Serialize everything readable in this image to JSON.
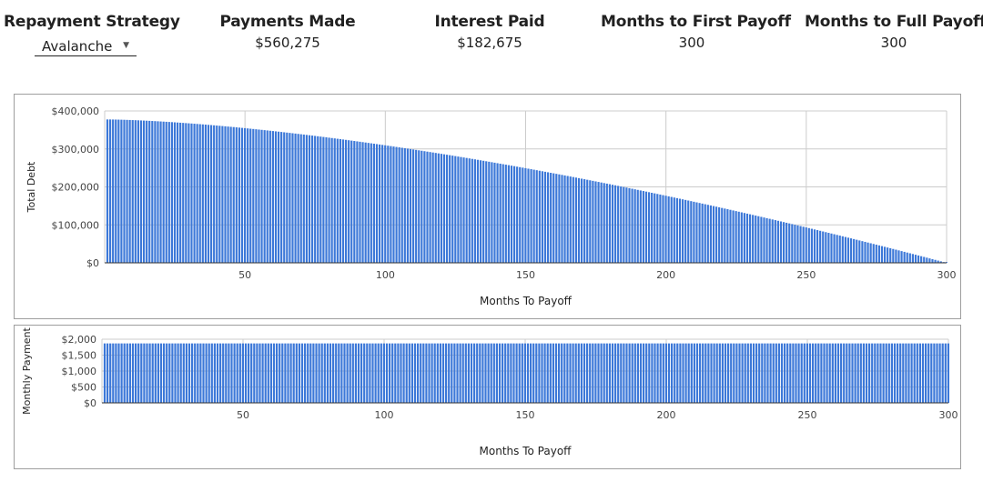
{
  "header": {
    "strategy": {
      "label": "Repayment Strategy",
      "value": "Avalanche"
    },
    "payments_made": {
      "label": "Payments Made",
      "value": "$560,275"
    },
    "interest_paid": {
      "label": "Interest Paid",
      "value": "$182,675"
    },
    "months_first": {
      "label": "Months to First Payoff",
      "value": "300"
    },
    "months_full": {
      "label": "Months to Full Payoff",
      "value": "300"
    }
  },
  "colors": {
    "bar": "#3c78d8",
    "grid": "#cccccc",
    "panel_border": "#9e9e9e"
  },
  "chart_data": [
    {
      "type": "bar",
      "xlabel": "Months To Payoff",
      "ylabel": "Total Debt",
      "x_ticks": [
        "50",
        "100",
        "150",
        "200",
        "250",
        "300"
      ],
      "y_ticks": [
        "$0",
        "$100,000",
        "$200,000",
        "$300,000",
        "$400,000"
      ],
      "xlim": [
        0,
        300
      ],
      "ylim": [
        0,
        400000
      ],
      "grid": true,
      "x_start": 1,
      "x_end": 300,
      "values_description": "total debt per month from 1 to 300",
      "start_value": 377600,
      "end_value": 0
    },
    {
      "type": "bar",
      "xlabel": "Months To Payoff",
      "ylabel": "Monthly Payment",
      "x_ticks": [
        "50",
        "100",
        "150",
        "200",
        "250",
        "300"
      ],
      "y_ticks": [
        "$0",
        "$500",
        "$1,000",
        "$1,500",
        "$2,000"
      ],
      "xlim": [
        0,
        300
      ],
      "ylim": [
        0,
        2000
      ],
      "grid": true,
      "x_start": 1,
      "x_end": 300,
      "monthly_value": 1868
    }
  ]
}
